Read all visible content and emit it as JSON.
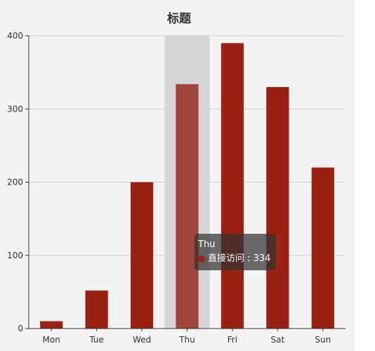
{
  "chart_data": {
    "type": "bar",
    "title": "标题",
    "categories": [
      "Mon",
      "Tue",
      "Wed",
      "Thu",
      "Fri",
      "Sat",
      "Sun"
    ],
    "series": [
      {
        "name": "直接访问",
        "values": [
          10,
          52,
          200,
          334,
          390,
          330,
          220
        ]
      }
    ],
    "ylim": [
      0,
      400
    ],
    "yticks": [
      "0",
      "100",
      "200",
      "300",
      "400"
    ],
    "grid": true,
    "colors": {
      "bar": "#9b2213",
      "bar_highlight": "#a2463a",
      "axis_pointer": "#d6d6d6",
      "background": "#f3f3f3"
    },
    "highlighted_category": "Thu"
  },
  "tooltip": {
    "category": "Thu",
    "series_name": "直接访问",
    "separator": " : ",
    "value": "334",
    "line": "直接访问 : 334"
  }
}
